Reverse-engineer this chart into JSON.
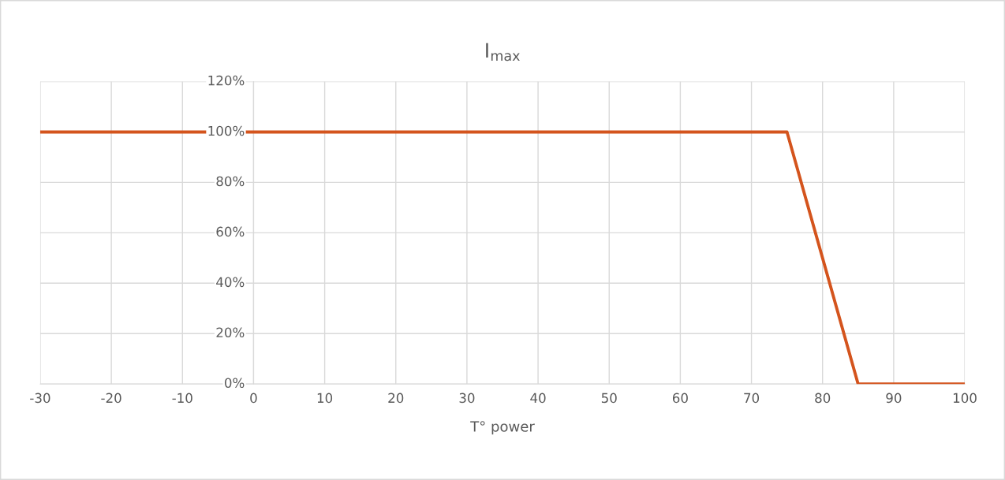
{
  "chart_data": {
    "type": "line",
    "title": "I$_{max}$",
    "xlabel": "T° power",
    "x": [
      -30,
      75,
      85,
      100
    ],
    "series": [
      {
        "color": "#d4541d",
        "values": [
          100,
          100,
          0,
          0
        ]
      }
    ],
    "xlim": [
      -30,
      100
    ],
    "xticks": [
      -30,
      -20,
      -10,
      0,
      10,
      20,
      30,
      40,
      50,
      60,
      70,
      80,
      90,
      100
    ],
    "ylim": [
      0,
      120
    ],
    "yticks": [
      {
        "value": 0,
        "label": "0%"
      },
      {
        "value": 20,
        "label": "20%"
      },
      {
        "value": 40,
        "label": "40%"
      },
      {
        "value": 60,
        "label": "60%"
      },
      {
        "value": 80,
        "label": "80%"
      },
      {
        "value": 100,
        "label": "100%"
      },
      {
        "value": 120,
        "label": "120%"
      }
    ],
    "grid": true,
    "marker": "none",
    "line_style": "solid"
  }
}
